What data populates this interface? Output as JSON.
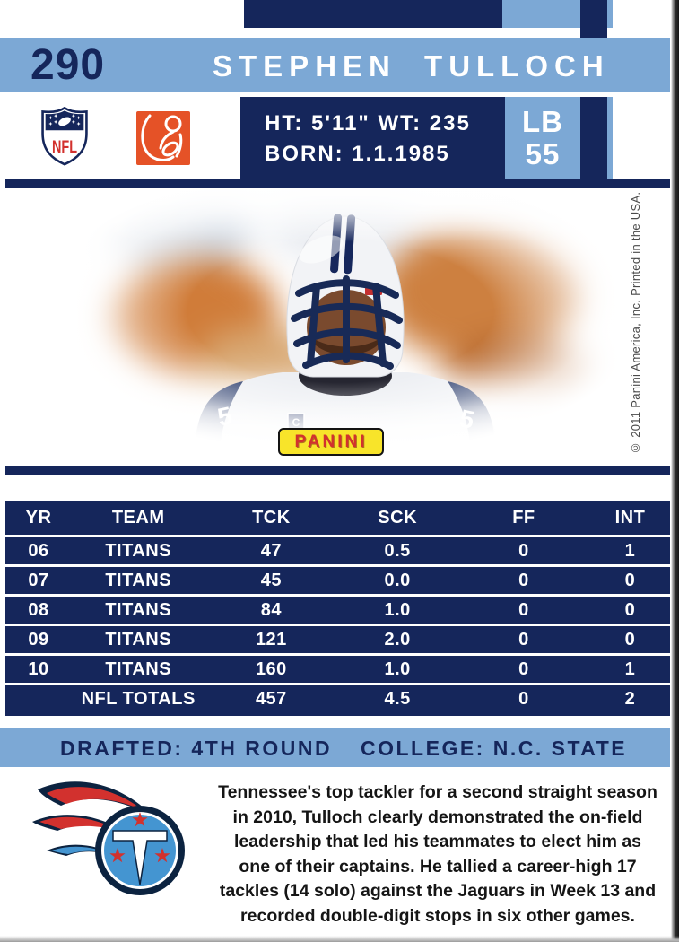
{
  "card_header": {
    "number": "290",
    "player_name": "STEPHEN TULLOCH"
  },
  "info": {
    "ht_wt": "HT: 5'11\" WT: 235",
    "born": "BORN: 1.1.1985",
    "position": "LB",
    "jersey_number": "55"
  },
  "logos": {
    "nfl_label": "NFL",
    "panini_label": "PANINI",
    "nfl_icon": "nfl-shield-icon",
    "nflpa_icon": "nflpa-player-icon",
    "titans_icon": "titans-flaming-t-icon"
  },
  "photo_marks": {
    "jersey_digit_left": "5",
    "jersey_digit_right": "5",
    "captain_patch": "C"
  },
  "copyright": "© 2011 Panini America, Inc. Printed in the USA.",
  "stats_table": {
    "columns": [
      "YR",
      "TEAM",
      "TCK",
      "SCK",
      "FF",
      "INT"
    ],
    "rows": [
      [
        "06",
        "TITANS",
        "47",
        "0.5",
        "0",
        "1"
      ],
      [
        "07",
        "TITANS",
        "45",
        "0.0",
        "0",
        "0"
      ],
      [
        "08",
        "TITANS",
        "84",
        "1.0",
        "0",
        "0"
      ],
      [
        "09",
        "TITANS",
        "121",
        "2.0",
        "0",
        "0"
      ],
      [
        "10",
        "TITANS",
        "160",
        "1.0",
        "0",
        "1"
      ],
      [
        "",
        "NFL TOTALS",
        "457",
        "4.5",
        "0",
        "2"
      ]
    ]
  },
  "footer": {
    "drafted": "DRAFTED: 4TH ROUND",
    "college": "COLLEGE: N.C. STATE",
    "bio_lines": [
      "Tennessee's top tackler for a second straight season",
      "in 2010, Tulloch clearly demonstrated the on-field",
      "leadership that led his teammates to elect him as",
      "one of their captains. He tallied a career-high 17",
      "tackles (14 solo) against the Jaguars in Week 13 and",
      "recorded double-digit stops in six other games."
    ]
  },
  "colors": {
    "navy": "#15265b",
    "light_blue": "#7ca8d5",
    "red": "#d2312e",
    "nflpa_orange": "#e55227",
    "panini_yellow": "#f8e42a",
    "titans_light_blue": "#4495d1"
  }
}
